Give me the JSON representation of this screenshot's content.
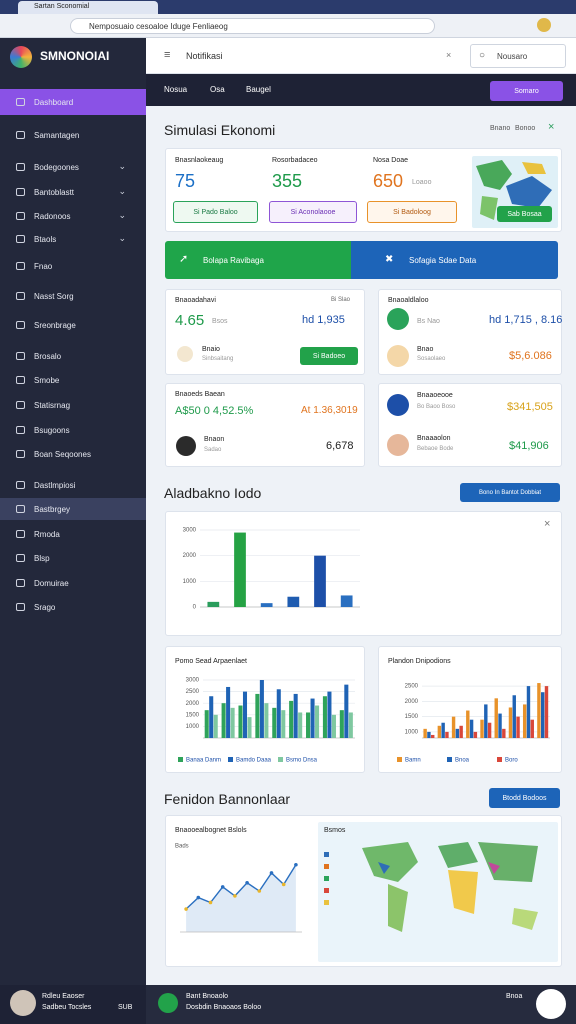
{
  "browser": {
    "tab": "Sartan Sconomial",
    "url": "Nemposuaio cesoaloe Iduge Fenliaeog"
  },
  "sidebar": {
    "brand": "SMNONOIAI",
    "items": [
      {
        "label": "Dashboard",
        "active": true,
        "chevron": false
      },
      {
        "label": "Samantagen",
        "active": false,
        "chevron": false
      },
      {
        "label": "Bodegoones",
        "active": false,
        "chevron": true
      },
      {
        "label": "Bantoblastt",
        "active": false,
        "chevron": true
      },
      {
        "label": "Radonoos",
        "active": false,
        "chevron": true
      },
      {
        "label": "Btaols",
        "active": false,
        "chevron": true
      },
      {
        "label": "Fnao",
        "active": false,
        "chevron": false
      },
      {
        "label": "Nasst Sorg",
        "active": false,
        "chevron": false
      },
      {
        "label": "Sreonbrage",
        "active": false,
        "chevron": false
      },
      {
        "label": "Brosalo",
        "active": false,
        "chevron": false
      },
      {
        "label": "Smobe",
        "active": false,
        "chevron": false
      },
      {
        "label": "Statisrnag",
        "active": false,
        "chevron": false
      },
      {
        "label": "Bsugoons",
        "active": false,
        "chevron": false
      },
      {
        "label": "Boan Seqoones",
        "active": false,
        "chevron": false
      },
      {
        "label": "Dastlmpiosi",
        "active": false,
        "chevron": false
      },
      {
        "label": "Bastbrgey",
        "active": false,
        "chevron": false,
        "hover": true
      },
      {
        "label": "Rmoda",
        "active": false,
        "chevron": false
      },
      {
        "label": "Blsp",
        "active": false,
        "chevron": false
      },
      {
        "label": "Domuirae",
        "active": false,
        "chevron": false
      },
      {
        "label": "Srago",
        "active": false,
        "chevron": false
      }
    ],
    "user": {
      "name": "Rdleu Eaoser",
      "role": "Sadbeu Tocsles",
      "badge": "SUB"
    }
  },
  "header": {
    "title": "Notifikasi",
    "search": "Nousaro"
  },
  "nav": {
    "links": [
      "Nosua",
      "Osa",
      "Baugel"
    ],
    "button": "Somaro"
  },
  "section1": {
    "title": "Simulasi Ekonomi",
    "links": [
      "Bnano",
      "Bonoo"
    ]
  },
  "stats": [
    {
      "label": "Bnasnlaokeaug",
      "value": "75",
      "button": "Si Pado Baloo"
    },
    {
      "label": "Rosorbadaceo",
      "value": "355",
      "button": "Si Aconolaooe"
    },
    {
      "label": "Nosa Doae",
      "value": "650",
      "note": "Loaoo",
      "button": "Si Badoloog"
    }
  ],
  "map_button": "Sab Bosaa",
  "banner": {
    "left": "Bolapa Ravibaga",
    "right": "Sofagia Sdae Data"
  },
  "cards": [
    {
      "title": "Bnaoadahavi",
      "value": "4.65",
      "note": "Bsos",
      "corner": "Bi Slao",
      "right": "hd 1,935",
      "row_title": "Bnaio",
      "row_sub": "Sinbsaitang",
      "button": "Si Badoeo"
    },
    {
      "title": "Bnaoaldlaloo",
      "value": "hd 1,715 , 8.16",
      "note": "Bs Nao",
      "row_title": "Bnao",
      "row_sub": "Sosaolaeo",
      "right": "$5,6.086"
    },
    {
      "title": "Bnaoeds Baean",
      "value": "A$50 0 4,52.5%",
      "corner": "At 1.36,3019",
      "row_title": "Bnaon",
      "row_sub": "Sadao",
      "right": "6,678"
    },
    {
      "title": "Bnaaoeooe",
      "value": "$341,505",
      "note": "Bo Baoo Boso",
      "row_title": "Bnaaaolon",
      "row_sub": "Bebaoe Bode",
      "right": "$41,906"
    }
  ],
  "section2": {
    "title": "Aladbakno Iodo",
    "button": "Bono In Bantot Dobbiat"
  },
  "section3": {
    "title": "Fenidon Bannonlaar",
    "button": "Btodd Bodoos",
    "map_title": "Bsmos"
  },
  "chat": {
    "title": "Bant Bnoaolo",
    "sub": "Dosbdin Bnaoaos Boloo",
    "right": "Bnoa"
  },
  "chart_data": [
    {
      "type": "bar",
      "categories": [
        null,
        null,
        null,
        null,
        null,
        null
      ],
      "values": [
        200,
        2900,
        150,
        400,
        2000,
        450
      ],
      "colors": [
        "#2a9d5c",
        "#25a244",
        "#2a6fc0",
        "#1f5cb0",
        "#1d4fa8",
        "#2a6fc0"
      ],
      "ylim": [
        0,
        3000
      ],
      "yticks": [
        0,
        1000,
        2000,
        3000
      ],
      "grid": true
    },
    {
      "type": "bar",
      "title": "Pomo Sead Arpaenlaet",
      "categories": [
        null,
        null,
        null,
        null,
        null,
        null,
        null,
        null,
        null
      ],
      "series": [
        {
          "name": "Banaa Danm",
          "color": "#2fa35a",
          "values": [
            1700,
            2000,
            1900,
            2400,
            1800,
            2100,
            1600,
            2300,
            1700
          ]
        },
        {
          "name": "Bamdo Daaa",
          "color": "#1f63b5",
          "values": [
            2300,
            2700,
            2500,
            3000,
            2600,
            2400,
            2200,
            2500,
            2800
          ]
        },
        {
          "name": "Bsmo Dnsa",
          "color": "#7fc8a0",
          "values": [
            1500,
            1800,
            1400,
            2000,
            1700,
            1600,
            1900,
            1500,
            1600
          ]
        }
      ],
      "ylim": [
        500,
        3000
      ],
      "yticks": [
        1000,
        1500,
        2000,
        2500,
        3000
      ],
      "grid": true
    },
    {
      "type": "bar",
      "title": "Plandon Dnipodions",
      "categories": [
        null,
        null,
        null,
        null,
        null,
        null,
        null,
        null,
        null
      ],
      "series": [
        {
          "name": "Bamn",
          "color": "#e8922a",
          "values": [
            1100,
            1200,
            1500,
            1700,
            1400,
            2100,
            1800,
            1900,
            2600
          ]
        },
        {
          "name": "Bnoa",
          "color": "#1f63b5",
          "values": [
            1000,
            1300,
            1100,
            1400,
            1900,
            1600,
            2200,
            2500,
            2300
          ]
        },
        {
          "name": "Boro",
          "color": "#d9473a",
          "values": [
            900,
            1000,
            1200,
            1000,
            1300,
            1100,
            1500,
            1400,
            2500
          ]
        }
      ],
      "ylim": [
        800,
        2700
      ],
      "yticks": [
        1000,
        1500,
        2000,
        2500
      ],
      "grid": true
    },
    {
      "type": "line",
      "title": "Bnaooealbognet Bslols",
      "subtitle": "Bads",
      "categories": [
        null,
        null,
        null,
        null,
        null,
        null,
        null,
        null,
        null,
        null
      ],
      "values": [
        28,
        42,
        36,
        55,
        44,
        60,
        50,
        72,
        58,
        82
      ],
      "color": "#2a6fc0",
      "ylim": [
        0,
        100
      ],
      "grid": false
    }
  ]
}
